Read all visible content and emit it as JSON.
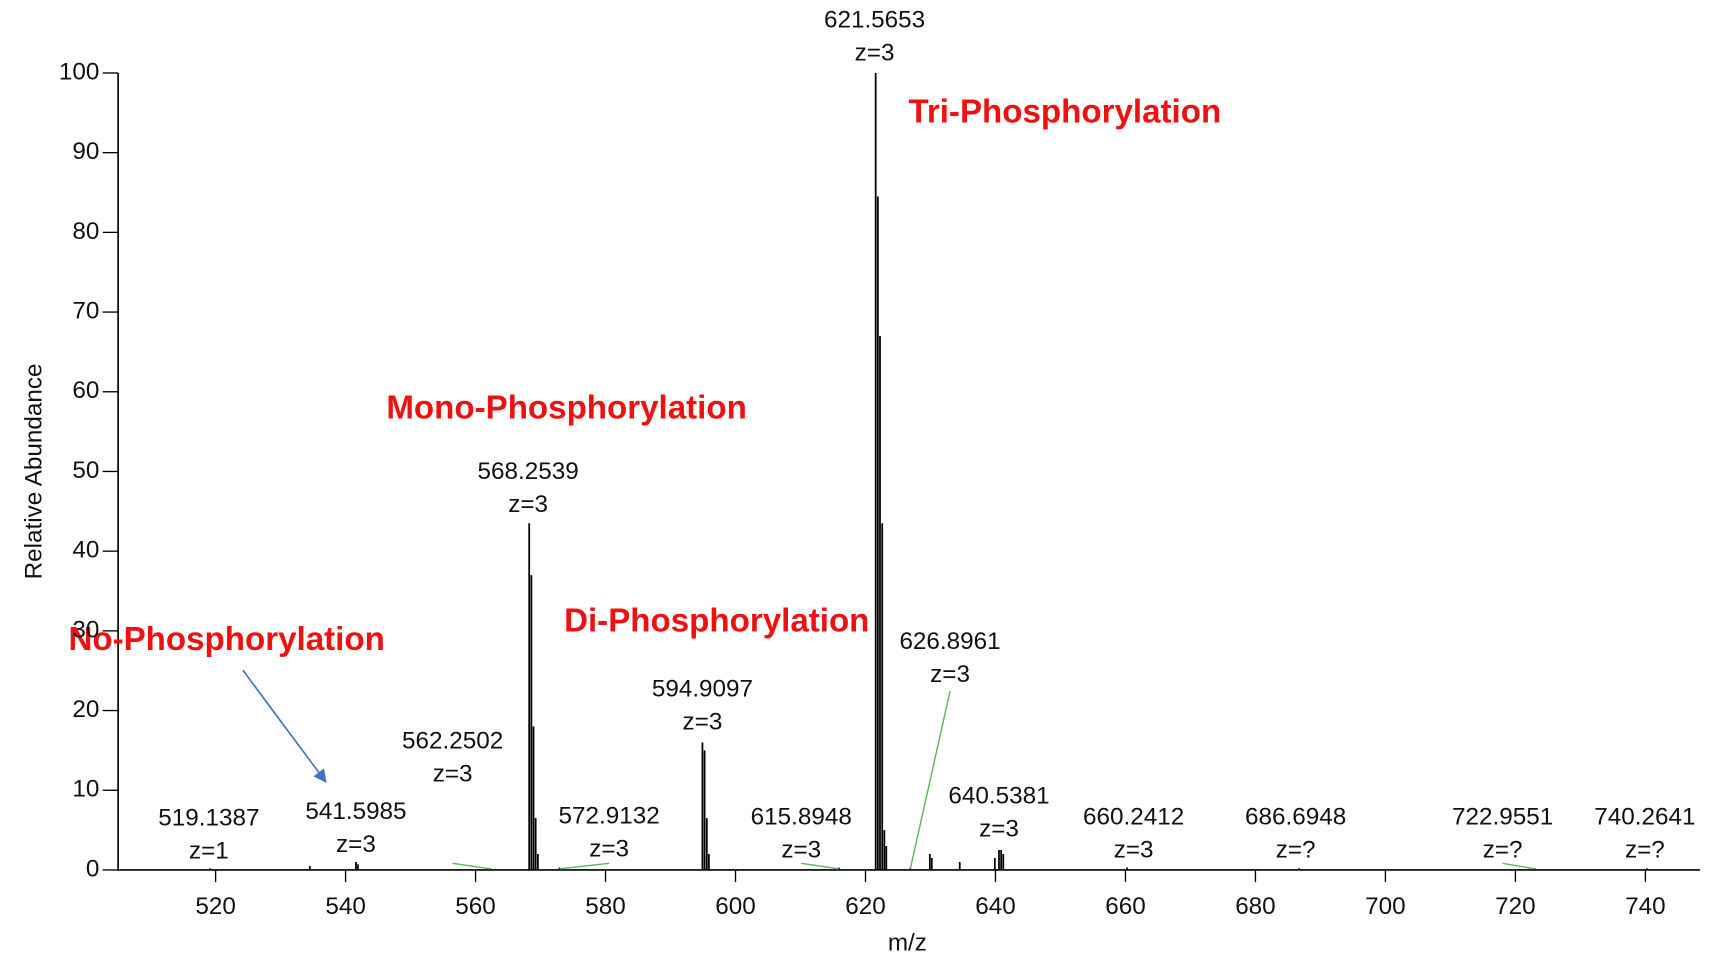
{
  "chart_data": {
    "type": "stem",
    "x_label": "m/z",
    "y_label": "Relative Abundance",
    "color": "#000000",
    "xlim": [
      505,
      748
    ],
    "ylim": [
      0,
      100
    ],
    "xticks": [
      520,
      540,
      560,
      580,
      600,
      620,
      640,
      660,
      680,
      700,
      720,
      740
    ],
    "yticks": [
      0,
      10,
      20,
      30,
      40,
      50,
      60,
      70,
      80,
      90,
      100
    ],
    "x": [
      519.1387,
      534.5,
      541.5985,
      541.9,
      562.2502,
      568.2539,
      568.59,
      568.92,
      569.25,
      569.59,
      572.9132,
      594.9097,
      595.24,
      595.58,
      595.9,
      615.8948,
      621.5653,
      621.9,
      622.23,
      622.57,
      622.9,
      623.2,
      626.8961,
      629.9,
      630.2,
      634.5,
      639.9,
      640.5381,
      640.87,
      641.2,
      660.2412,
      686.6948,
      722.9551,
      740.2641
    ],
    "values": [
      0.2,
      0.5,
      1,
      0.7,
      0.2,
      43.5,
      37,
      18,
      6.5,
      2,
      0.3,
      16,
      15,
      6.5,
      2,
      0.3,
      100,
      84.5,
      67,
      43.5,
      5,
      3,
      0.3,
      2,
      1.5,
      1,
      1.5,
      2.5,
      2.5,
      2,
      0.3,
      0.2,
      0.2,
      0.2
    ],
    "peak_labels": [
      {
        "mz": 519.1387,
        "charge": "z=1"
      },
      {
        "mz": 541.5985,
        "charge": "z=3"
      },
      {
        "mz": 562.2502,
        "charge": "z=3"
      },
      {
        "mz": 568.2539,
        "charge": "z=3"
      },
      {
        "mz": 572.9132,
        "charge": "z=3"
      },
      {
        "mz": 594.9097,
        "charge": "z=3"
      },
      {
        "mz": 615.8948,
        "charge": "z=3"
      },
      {
        "mz": 621.5653,
        "charge": "z=3"
      },
      {
        "mz": 626.8961,
        "charge": "z=3"
      },
      {
        "mz": 640.5381,
        "charge": "z=3"
      },
      {
        "mz": 660.2412,
        "charge": "z=3"
      },
      {
        "mz": 686.6948,
        "charge": "z=?"
      },
      {
        "mz": 722.9551,
        "charge": "z=?"
      },
      {
        "mz": 740.2641,
        "charge": "z=?"
      }
    ],
    "annotations": [
      "Tri-Phosphorylation",
      "Mono-Phosphorylation",
      "Di-Phosphorylation",
      "No-Phosphorylation"
    ]
  }
}
